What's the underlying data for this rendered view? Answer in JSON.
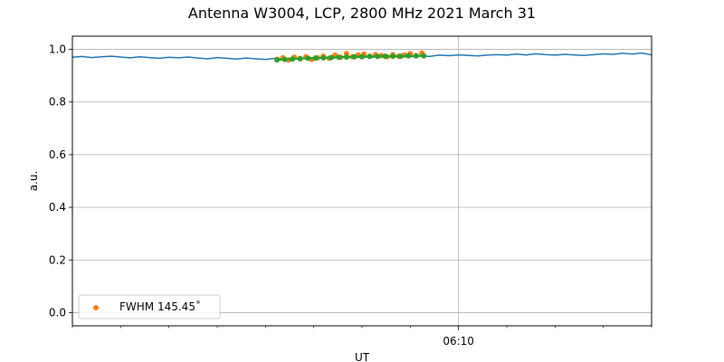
{
  "chart_data": {
    "type": "line",
    "title": "Antenna W3004, LCP, 2800 MHz 2021 March 31",
    "xlabel": "UT",
    "ylabel": "a.u.",
    "ylim": [
      -0.05,
      1.05
    ],
    "yticks": [
      0.0,
      0.2,
      0.4,
      0.6,
      0.8,
      1.0
    ],
    "xlim_minutes": [
      0,
      15
    ],
    "xticks_labeled": [
      {
        "minute": 10,
        "label": "06:10"
      }
    ],
    "minor_tick_minutes": [
      0,
      1.25,
      2.5,
      3.75,
      5,
      6.25,
      7.5,
      8.75,
      11.25,
      12.5,
      13.75,
      15
    ],
    "grid": true,
    "legend": {
      "placement": "lower-left",
      "entries": [
        "FWHM 145.45$^\\circ$"
      ],
      "display": [
        "FWHM 145.45˚"
      ]
    },
    "series": [
      {
        "color": "#1f77b4",
        "style": "line",
        "x_minutes": [
          0.0,
          0.25,
          0.5,
          0.75,
          1.0,
          1.25,
          1.5,
          1.75,
          2.0,
          2.25,
          2.5,
          2.75,
          3.0,
          3.25,
          3.5,
          3.75,
          4.0,
          4.25,
          4.5,
          4.75,
          5.0,
          5.25,
          5.5,
          5.75,
          6.0,
          6.25,
          6.5,
          6.75,
          7.0,
          7.25,
          7.5,
          7.75,
          8.0,
          8.25,
          8.5,
          8.75,
          9.0,
          9.25,
          9.5,
          9.75,
          10.0,
          10.25,
          10.5,
          10.75,
          11.0,
          11.25,
          11.5,
          11.75,
          12.0,
          12.25,
          12.5,
          12.75,
          13.0,
          13.25,
          13.5,
          13.75,
          14.0,
          14.25,
          14.5,
          14.75,
          15.0
        ],
        "values": [
          0.97,
          0.973,
          0.969,
          0.972,
          0.974,
          0.971,
          0.968,
          0.972,
          0.969,
          0.966,
          0.97,
          0.968,
          0.971,
          0.967,
          0.964,
          0.969,
          0.966,
          0.963,
          0.967,
          0.964,
          0.962,
          0.966,
          0.963,
          0.965,
          0.967,
          0.965,
          0.969,
          0.967,
          0.971,
          0.968,
          0.972,
          0.97,
          0.973,
          0.971,
          0.974,
          0.972,
          0.975,
          0.973,
          0.978,
          0.976,
          0.979,
          0.977,
          0.975,
          0.978,
          0.98,
          0.978,
          0.982,
          0.979,
          0.983,
          0.98,
          0.978,
          0.981,
          0.979,
          0.977,
          0.98,
          0.983,
          0.981,
          0.985,
          0.982,
          0.986,
          0.979
        ]
      },
      {
        "name": "FWHM 145.45$^\\circ$",
        "color": "#ff7f0e",
        "style": "scatter",
        "x_minutes": [
          5.3,
          5.45,
          5.6,
          5.75,
          5.9,
          6.05,
          6.2,
          6.35,
          6.5,
          6.65,
          6.8,
          6.95,
          7.1,
          7.25,
          7.4,
          7.55,
          7.7,
          7.85,
          8.0,
          8.15,
          8.3,
          8.45,
          8.6,
          8.75,
          8.9,
          9.05
        ],
        "values": [
          0.962,
          0.968,
          0.96,
          0.97,
          0.964,
          0.972,
          0.962,
          0.968,
          0.974,
          0.966,
          0.978,
          0.97,
          0.984,
          0.972,
          0.978,
          0.982,
          0.974,
          0.98,
          0.976,
          0.972,
          0.98,
          0.974,
          0.978,
          0.984,
          0.976,
          0.986
        ]
      },
      {
        "color": "#2ca02c",
        "style": "line-markers",
        "x_minutes": [
          5.3,
          5.5,
          5.7,
          5.9,
          6.1,
          6.3,
          6.5,
          6.7,
          6.9,
          7.1,
          7.3,
          7.5,
          7.7,
          7.9,
          8.1,
          8.3,
          8.5,
          8.7,
          8.9,
          9.1
        ],
        "values": [
          0.96,
          0.962,
          0.963,
          0.965,
          0.966,
          0.967,
          0.968,
          0.969,
          0.97,
          0.971,
          0.972,
          0.972,
          0.973,
          0.973,
          0.974,
          0.974,
          0.974,
          0.975,
          0.975,
          0.975
        ]
      }
    ]
  }
}
